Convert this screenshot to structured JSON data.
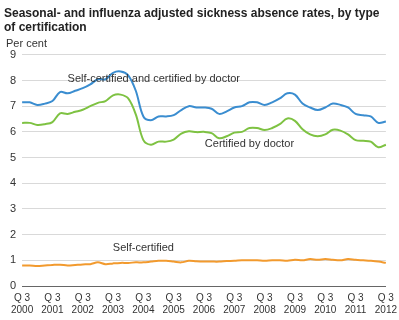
{
  "chart_data": {
    "type": "line",
    "title": "Seasonal- and influenza adjusted sickness absence rates, by type of certification",
    "y_label": "Per cent",
    "categories": [
      "Q 3\n2000",
      null,
      null,
      null,
      "Q 3\n2001",
      null,
      null,
      null,
      "Q 3\n2002",
      null,
      null,
      null,
      "Q 3\n2003",
      null,
      null,
      null,
      "Q 3\n2004",
      null,
      null,
      null,
      "Q 3\n2005",
      null,
      null,
      null,
      "Q 3\n2006",
      null,
      null,
      null,
      "Q 3\n2007",
      null,
      null,
      null,
      "Q 3\n2008",
      null,
      null,
      null,
      "Q 3\n2009",
      null,
      null,
      null,
      "Q 3\n2010",
      null,
      null,
      null,
      "Q 3\n2011",
      null,
      null,
      null,
      "Q 3\n2012"
    ],
    "series": [
      {
        "name": "Self-certified and certified by doctor",
        "color": "#3a8dd0",
        "values": [
          7.15,
          7.15,
          7.05,
          7.1,
          7.2,
          7.55,
          7.5,
          7.6,
          7.7,
          7.85,
          8.05,
          8.05,
          8.3,
          8.35,
          8.2,
          7.6,
          6.6,
          6.45,
          6.6,
          6.6,
          6.65,
          6.85,
          7.0,
          6.95,
          6.95,
          6.9,
          6.7,
          6.8,
          6.95,
          7.0,
          7.15,
          7.15,
          7.05,
          7.15,
          7.3,
          7.5,
          7.45,
          7.1,
          6.95,
          6.85,
          6.95,
          7.1,
          7.05,
          6.95,
          6.7,
          6.65,
          6.6,
          6.35,
          6.4
        ]
      },
      {
        "name": "Certified by doctor",
        "color": "#7ec242",
        "values": [
          6.35,
          6.35,
          6.27,
          6.3,
          6.38,
          6.72,
          6.7,
          6.78,
          6.86,
          7.0,
          7.13,
          7.2,
          7.42,
          7.45,
          7.3,
          6.68,
          5.68,
          5.5,
          5.62,
          5.62,
          5.7,
          5.93,
          6.02,
          5.99,
          6.0,
          5.95,
          5.75,
          5.83,
          5.97,
          6.0,
          6.15,
          6.15,
          6.07,
          6.15,
          6.3,
          6.52,
          6.43,
          6.1,
          5.9,
          5.83,
          5.9,
          6.08,
          6.05,
          5.9,
          5.68,
          5.65,
          5.62,
          5.4,
          5.5
        ]
      },
      {
        "name": "Self-certified",
        "color": "#f29a2e",
        "values": [
          0.8,
          0.8,
          0.78,
          0.8,
          0.82,
          0.83,
          0.8,
          0.82,
          0.84,
          0.85,
          0.92,
          0.85,
          0.88,
          0.9,
          0.9,
          0.92,
          0.92,
          0.95,
          0.98,
          0.98,
          0.95,
          0.92,
          0.98,
          0.96,
          0.95,
          0.95,
          0.95,
          0.97,
          0.98,
          1.0,
          1.0,
          1.0,
          0.98,
          1.0,
          1.0,
          0.98,
          1.02,
          1.0,
          1.05,
          1.02,
          1.05,
          1.02,
          1.0,
          1.05,
          1.02,
          1.0,
          0.98,
          0.95,
          0.9
        ]
      }
    ],
    "ylim": [
      0,
      9
    ],
    "yticks": [
      0,
      1,
      2,
      3,
      4,
      5,
      6,
      7,
      8,
      9
    ],
    "grid": true
  }
}
